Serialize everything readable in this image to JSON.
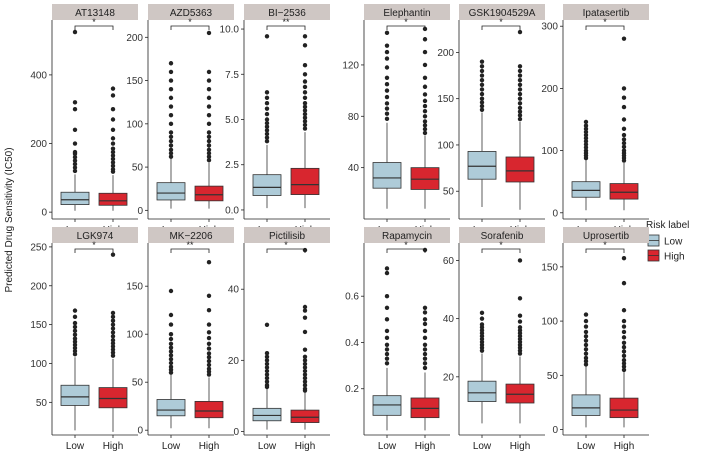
{
  "figure": {
    "ylabel": "Predicted Drug Sensitivity (IC50)",
    "legend_title": "Risk label",
    "groups": [
      "Low",
      "High"
    ],
    "colors": {
      "Low": "#aecbd8",
      "High": "#d8262f",
      "strip": "#cfc7c4",
      "outlier": "#222222"
    }
  },
  "chart_data": [
    {
      "type": "box",
      "title": "AT13148",
      "ylim": [
        -20,
        560
      ],
      "yticks": [
        0,
        200,
        400
      ],
      "signif": "*",
      "categories": [
        "Low",
        "High"
      ],
      "series": [
        {
          "name": "Low",
          "min": 4,
          "q1": 22,
          "median": 36,
          "q3": 58,
          "max": 110,
          "outliers": [
            120,
            130,
            140,
            150,
            160,
            170,
            175,
            200,
            240,
            300,
            320,
            525
          ]
        },
        {
          "name": "High",
          "min": 4,
          "q1": 20,
          "median": 33,
          "q3": 55,
          "max": 108,
          "outliers": [
            118,
            125,
            135,
            145,
            155,
            165,
            175,
            185,
            200,
            215,
            240,
            270,
            300,
            340,
            360
          ]
        }
      ]
    },
    {
      "type": "box",
      "title": "AZD5363",
      "ylim": [
        -10,
        220
      ],
      "yticks": [
        0,
        50,
        100,
        150,
        200
      ],
      "signif": "*",
      "categories": [
        "Low",
        "High"
      ],
      "series": [
        {
          "name": "Low",
          "min": 2,
          "q1": 12,
          "median": 20,
          "q3": 32,
          "max": 60,
          "outliers": [
            62,
            66,
            70,
            75,
            80,
            85,
            90,
            100,
            110,
            120,
            130,
            140,
            150,
            160,
            170
          ]
        },
        {
          "name": "High",
          "min": 2,
          "q1": 11,
          "median": 18,
          "q3": 28,
          "max": 55,
          "outliers": [
            58,
            62,
            66,
            70,
            75,
            80,
            85,
            90,
            100,
            110,
            120,
            130,
            140,
            150,
            160,
            205
          ]
        }
      ]
    },
    {
      "type": "box",
      "title": "BI−2536",
      "ylim": [
        -0.5,
        10.5
      ],
      "yticks": [
        0.0,
        2.5,
        5.0,
        7.5,
        10.0
      ],
      "signif": "**",
      "categories": [
        "Low",
        "High"
      ],
      "series": [
        {
          "name": "Low",
          "min": 0.1,
          "q1": 0.8,
          "median": 1.25,
          "q3": 1.95,
          "max": 3.6,
          "outliers": [
            3.8,
            4.0,
            4.2,
            4.4,
            4.6,
            4.8,
            5.0,
            5.3,
            5.6,
            5.9,
            6.2,
            6.5,
            9.6
          ]
        },
        {
          "name": "High",
          "min": 0.1,
          "q1": 0.85,
          "median": 1.4,
          "q3": 2.3,
          "max": 4.3,
          "outliers": [
            4.5,
            4.7,
            4.9,
            5.1,
            5.3,
            5.5,
            5.7,
            5.9,
            6.2,
            6.5,
            6.8,
            7.1,
            7.5,
            8.0,
            9.1,
            9.6
          ]
        }
      ]
    },
    {
      "type": "box",
      "title": "Elephantin",
      "ylim": [
        0,
        155
      ],
      "yticks": [
        40,
        80,
        120
      ],
      "signif": "*",
      "categories": [
        "Low",
        "High"
      ],
      "series": [
        {
          "name": "Low",
          "min": 8,
          "q1": 24,
          "median": 32,
          "q3": 44,
          "max": 75,
          "outliers": [
            78,
            82,
            86,
            90,
            95,
            100,
            105,
            110,
            118,
            125,
            130,
            135,
            145
          ]
        },
        {
          "name": "High",
          "min": 8,
          "q1": 23,
          "median": 31,
          "q3": 40,
          "max": 65,
          "outliers": [
            67,
            70,
            73,
            76,
            80,
            84,
            88,
            92,
            97,
            103,
            110,
            120,
            130,
            140,
            148
          ]
        }
      ]
    },
    {
      "type": "box",
      "title": "GSK1904529A",
      "ylim": [
        20,
        235
      ],
      "yticks": [
        50,
        100,
        150,
        200
      ],
      "signif": "*",
      "categories": [
        "Low",
        "High"
      ],
      "series": [
        {
          "name": "Low",
          "min": 33,
          "q1": 63,
          "median": 77,
          "q3": 93,
          "max": 135,
          "outliers": [
            138,
            142,
            146,
            150,
            155,
            160,
            165,
            170,
            175,
            180,
            185,
            190
          ]
        },
        {
          "name": "High",
          "min": 30,
          "q1": 60,
          "median": 72,
          "q3": 87,
          "max": 125,
          "outliers": [
            128,
            132,
            136,
            140,
            145,
            150,
            155,
            160,
            165,
            170,
            175,
            180,
            185,
            222
          ]
        }
      ]
    },
    {
      "type": "box",
      "title": "Ipatasertib",
      "ylim": [
        -10,
        310
      ],
      "yticks": [
        0,
        100,
        200,
        300
      ],
      "signif": "*",
      "categories": [
        "Low",
        "High"
      ],
      "series": [
        {
          "name": "Low",
          "min": 4,
          "q1": 25,
          "median": 36,
          "q3": 50,
          "max": 85,
          "outliers": [
            88,
            92,
            96,
            100,
            105,
            110,
            115,
            120,
            125,
            130,
            135,
            140,
            146
          ]
        },
        {
          "name": "High",
          "min": 4,
          "q1": 22,
          "median": 33,
          "q3": 47,
          "max": 80,
          "outliers": [
            84,
            88,
            92,
            96,
            100,
            106,
            112,
            118,
            125,
            135,
            150,
            170,
            185,
            200,
            280
          ]
        }
      ]
    },
    {
      "type": "box",
      "title": "LGK974",
      "ylim": [
        8,
        255
      ],
      "yticks": [
        50,
        100,
        150,
        200,
        250
      ],
      "signif": "*",
      "categories": [
        "Low",
        "High"
      ],
      "series": [
        {
          "name": "Low",
          "min": 14,
          "q1": 46,
          "median": 57,
          "q3": 72,
          "max": 108,
          "outliers": [
            112,
            116,
            120,
            124,
            128,
            132,
            137,
            142,
            147,
            152,
            160,
            168
          ]
        },
        {
          "name": "High",
          "min": 12,
          "q1": 43,
          "median": 55,
          "q3": 69,
          "max": 106,
          "outliers": [
            110,
            114,
            118,
            122,
            126,
            130,
            135,
            140,
            145,
            150,
            155,
            160,
            165,
            240
          ]
        }
      ]
    },
    {
      "type": "box",
      "title": "MK−2206",
      "ylim": [
        -5,
        195
      ],
      "yticks": [
        0,
        50,
        100,
        150
      ],
      "signif": "**",
      "categories": [
        "Low",
        "High"
      ],
      "series": [
        {
          "name": "Low",
          "min": 2,
          "q1": 15,
          "median": 21,
          "q3": 32,
          "max": 58,
          "outliers": [
            60,
            63,
            66,
            70,
            74,
            78,
            82,
            86,
            90,
            95,
            100,
            110,
            120,
            145
          ]
        },
        {
          "name": "High",
          "min": 2,
          "q1": 13,
          "median": 20,
          "q3": 30,
          "max": 55,
          "outliers": [
            58,
            61,
            64,
            68,
            72,
            76,
            80,
            85,
            90,
            96,
            102,
            110,
            125,
            140,
            175
          ]
        }
      ]
    },
    {
      "type": "box",
      "title": "Pictilisib",
      "ylim": [
        -1,
        53
      ],
      "yticks": [
        0,
        20,
        40
      ],
      "signif": "*",
      "categories": [
        "Low",
        "High"
      ],
      "series": [
        {
          "name": "Low",
          "min": 0.5,
          "q1": 3,
          "median": 4.5,
          "q3": 6.5,
          "max": 12,
          "outliers": [
            12.5,
            13,
            14,
            15,
            16,
            17,
            18,
            19,
            20,
            21,
            22,
            30
          ]
        },
        {
          "name": "High",
          "min": 0.5,
          "q1": 2.5,
          "median": 4,
          "q3": 6,
          "max": 11,
          "outliers": [
            11.5,
            12,
            13,
            14,
            15,
            16,
            17,
            18,
            19,
            20,
            21,
            23,
            28,
            32,
            34,
            35,
            51
          ]
        }
      ]
    },
    {
      "type": "box",
      "title": "Rapamycin",
      "ylim": [
        0,
        0.83
      ],
      "yticks": [
        0.2,
        0.4,
        0.6
      ],
      "signif": "*",
      "categories": [
        "Low",
        "High"
      ],
      "series": [
        {
          "name": "Low",
          "min": 0.02,
          "q1": 0.085,
          "median": 0.13,
          "q3": 0.17,
          "max": 0.29,
          "outliers": [
            0.31,
            0.33,
            0.35,
            0.37,
            0.39,
            0.42,
            0.45,
            0.5,
            0.55,
            0.6,
            0.7,
            0.72
          ]
        },
        {
          "name": "High",
          "min": 0.02,
          "q1": 0.075,
          "median": 0.115,
          "q3": 0.16,
          "max": 0.27,
          "outliers": [
            0.29,
            0.31,
            0.33,
            0.35,
            0.37,
            0.39,
            0.42,
            0.45,
            0.48,
            0.5,
            0.53,
            0.55,
            0.8
          ]
        }
      ]
    },
    {
      "type": "box",
      "title": "Sorafenib",
      "ylim": [
        0,
        66
      ],
      "yticks": [
        20,
        40,
        60
      ],
      "signif": "*",
      "categories": [
        "Low",
        "High"
      ],
      "series": [
        {
          "name": "Low",
          "min": 4,
          "q1": 11.5,
          "median": 14.5,
          "q3": 18.5,
          "max": 28,
          "outliers": [
            29,
            30,
            31,
            32,
            33,
            34,
            35,
            36,
            37,
            38,
            40,
            42
          ]
        },
        {
          "name": "High",
          "min": 4,
          "q1": 11,
          "median": 14,
          "q3": 17.5,
          "max": 27,
          "outliers": [
            28,
            29,
            30,
            31,
            32,
            33,
            34,
            35,
            36,
            37,
            39,
            41,
            47,
            60
          ]
        }
      ]
    },
    {
      "type": "box",
      "title": "Uprosertib",
      "ylim": [
        -5,
        172
      ],
      "yticks": [
        0,
        50,
        100,
        150
      ],
      "signif": "*",
      "categories": [
        "Low",
        "High"
      ],
      "series": [
        {
          "name": "Low",
          "min": 2,
          "q1": 13,
          "median": 20,
          "q3": 32,
          "max": 58,
          "outliers": [
            60,
            63,
            66,
            70,
            74,
            78,
            82,
            86,
            90,
            95,
            100,
            106
          ]
        },
        {
          "name": "High",
          "min": 2,
          "q1": 11,
          "median": 18,
          "q3": 29,
          "max": 53,
          "outliers": [
            55,
            58,
            61,
            64,
            68,
            72,
            76,
            80,
            85,
            90,
            95,
            100,
            110,
            135,
            158
          ]
        }
      ]
    }
  ]
}
